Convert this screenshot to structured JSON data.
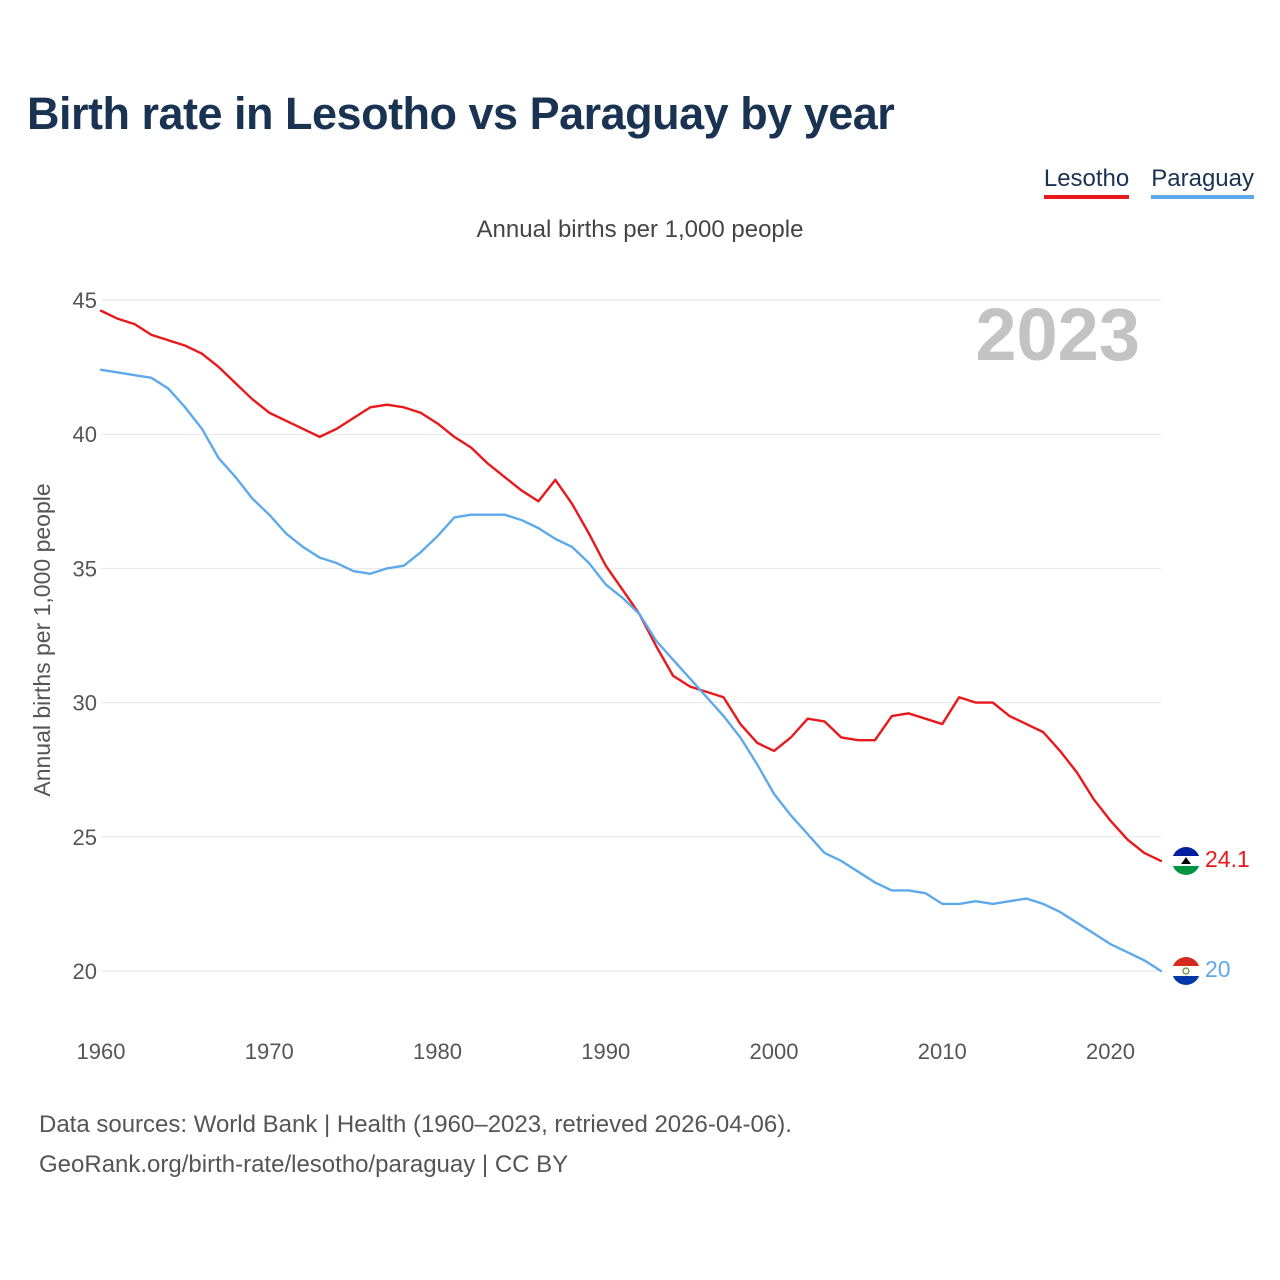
{
  "title": "Birth rate in Lesotho vs Paraguay by year",
  "subtitle": "Annual births per 1,000 people",
  "legend": [
    {
      "name": "Lesotho",
      "color": "#e8191c"
    },
    {
      "name": "Paraguay",
      "color": "#5ea9ea"
    }
  ],
  "source": {
    "line1": "Data sources: World Bank | Health (1960–2023, retrieved 2026-04-06).",
    "line2": "GeoRank.org/birth-rate/lesotho/paraguay | CC BY"
  },
  "chart_data": {
    "type": "line",
    "title": "Birth rate in Lesotho vs Paraguay by year",
    "ylabel": "Annual births per 1,000 people",
    "xlabel": "",
    "year_label": "2023",
    "xlim": [
      1960,
      2023
    ],
    "ylim": [
      20,
      45
    ],
    "x_ticks": [
      1960,
      1970,
      1980,
      1990,
      2000,
      2010,
      2020
    ],
    "y_ticks": [
      20,
      25,
      30,
      35,
      40,
      45
    ],
    "grid": true,
    "x": [
      1960,
      1961,
      1962,
      1963,
      1964,
      1965,
      1966,
      1967,
      1968,
      1969,
      1970,
      1971,
      1972,
      1973,
      1974,
      1975,
      1976,
      1977,
      1978,
      1979,
      1980,
      1981,
      1982,
      1983,
      1984,
      1985,
      1986,
      1987,
      1988,
      1989,
      1990,
      1991,
      1992,
      1993,
      1994,
      1995,
      1996,
      1997,
      1998,
      1999,
      2000,
      2001,
      2002,
      2003,
      2004,
      2005,
      2006,
      2007,
      2008,
      2009,
      2010,
      2011,
      2012,
      2013,
      2014,
      2015,
      2016,
      2017,
      2018,
      2019,
      2020,
      2021,
      2022,
      2023
    ],
    "series": [
      {
        "name": "Lesotho",
        "color": "#e8191c",
        "end_label": "24.1",
        "values": [
          44.6,
          44.3,
          44.1,
          43.7,
          43.5,
          43.3,
          43.0,
          42.5,
          41.9,
          41.3,
          40.8,
          40.5,
          40.2,
          39.9,
          40.2,
          40.6,
          41.0,
          41.1,
          41.0,
          40.8,
          40.4,
          39.9,
          39.5,
          38.9,
          38.4,
          37.9,
          37.5,
          38.3,
          37.4,
          36.3,
          35.1,
          34.2,
          33.3,
          32.1,
          31.0,
          30.6,
          30.4,
          30.2,
          29.2,
          28.5,
          28.2,
          28.7,
          29.4,
          29.3,
          28.7,
          28.6,
          28.6,
          29.5,
          29.6,
          29.4,
          29.2,
          30.2,
          30.0,
          30.0,
          29.5,
          29.2,
          28.9,
          28.2,
          27.4,
          26.4,
          25.6,
          24.9,
          24.4,
          24.1
        ]
      },
      {
        "name": "Paraguay",
        "color": "#5ea9ea",
        "end_label": "20",
        "values": [
          42.4,
          42.3,
          42.2,
          42.1,
          41.7,
          41.0,
          40.2,
          39.1,
          38.4,
          37.6,
          37.0,
          36.3,
          35.8,
          35.4,
          35.2,
          34.9,
          34.8,
          35.0,
          35.1,
          35.6,
          36.2,
          36.9,
          37.0,
          37.0,
          37.0,
          36.8,
          36.5,
          36.1,
          35.8,
          35.2,
          34.4,
          33.9,
          33.3,
          32.3,
          31.6,
          30.9,
          30.2,
          29.5,
          28.7,
          27.7,
          26.6,
          25.8,
          25.1,
          24.4,
          24.1,
          23.7,
          23.3,
          23.0,
          23.0,
          22.9,
          22.5,
          22.5,
          22.6,
          22.5,
          22.6,
          22.7,
          22.5,
          22.2,
          21.8,
          21.4,
          21.0,
          20.7,
          20.4,
          20.0
        ]
      }
    ]
  }
}
